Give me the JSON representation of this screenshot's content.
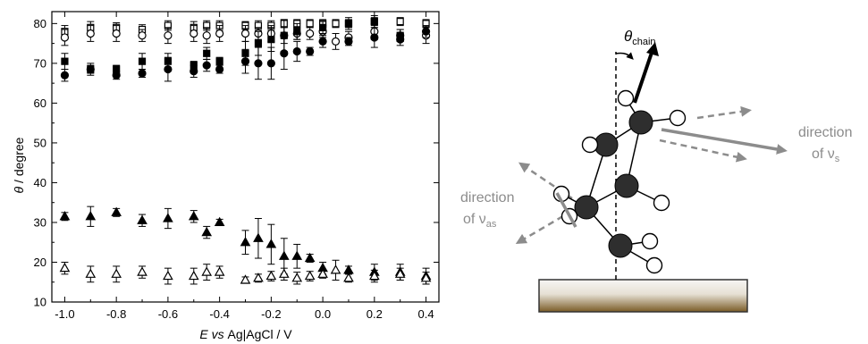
{
  "chart_data": {
    "type": "scatter",
    "xlabel": {
      "pre": "E",
      "mid": " vs ",
      "post": "Ag|AgCl / V"
    },
    "ylabel": {
      "sym": "θ",
      "post": " / degree"
    },
    "xlim": [
      -1.05,
      0.45
    ],
    "ylim": [
      10,
      83
    ],
    "xticks": [
      -1.0,
      -0.8,
      -0.6,
      -0.4,
      -0.2,
      0.0,
      0.2,
      0.4
    ],
    "xtick_labels": [
      "-1.0",
      "-0.8",
      "-0.6",
      "-0.4",
      "-0.2",
      "0.0",
      "0.2",
      "0.4"
    ],
    "yticks": [
      10,
      20,
      30,
      40,
      50,
      60,
      70,
      80
    ],
    "grid": false,
    "series": [
      {
        "marker": "square-open",
        "color": "#000000",
        "x": [
          -1.0,
          -0.9,
          -0.8,
          -0.7,
          -0.6,
          -0.5,
          -0.45,
          -0.4,
          -0.3,
          -0.25,
          -0.2,
          -0.15,
          -0.1,
          -0.05,
          0.0,
          0.05,
          0.1,
          0.2,
          0.3,
          0.4
        ],
        "y": [
          78,
          79,
          79,
          78.5,
          79.5,
          79,
          79.5,
          79.5,
          79.5,
          79.5,
          79.5,
          80,
          80,
          80,
          80,
          80,
          80,
          80.5,
          80.5,
          80
        ],
        "err": [
          1.5,
          1.5,
          1.2,
          1.2,
          1.2,
          1.5,
          1.2,
          1.2,
          1,
          1.2,
          1.2,
          1,
          1,
          1,
          1,
          1,
          1,
          1,
          1,
          1
        ]
      },
      {
        "marker": "circle-open",
        "color": "#000000",
        "x": [
          -1.0,
          -0.9,
          -0.8,
          -0.7,
          -0.6,
          -0.5,
          -0.45,
          -0.4,
          -0.3,
          -0.25,
          -0.2,
          -0.15,
          -0.1,
          -0.05,
          0.0,
          0.05,
          0.1,
          0.2,
          0.3,
          0.4
        ],
        "y": [
          76.5,
          77.5,
          77.5,
          77,
          77,
          77.5,
          77,
          77.5,
          77.5,
          77.5,
          77.5,
          77,
          77.5,
          77.5,
          78,
          75.5,
          76.5,
          78,
          77,
          77
        ],
        "err": [
          2,
          2,
          2,
          1.5,
          2,
          2,
          2,
          2,
          2,
          1.5,
          2,
          2,
          1.5,
          1.5,
          1.5,
          2,
          1.5,
          2,
          1.5,
          2
        ]
      },
      {
        "marker": "square-filled",
        "color": "#000000",
        "x": [
          -1.0,
          -0.9,
          -0.8,
          -0.7,
          -0.6,
          -0.5,
          -0.45,
          -0.4,
          -0.3,
          -0.25,
          -0.2,
          -0.15,
          -0.1,
          0.0,
          0.1,
          0.2,
          0.3
        ],
        "y": [
          70.5,
          68.5,
          68.5,
          70.5,
          70.5,
          69.5,
          72.5,
          70.5,
          72.5,
          75,
          76,
          77,
          78,
          79,
          80,
          80.5,
          77
        ],
        "err": [
          2,
          1,
          1,
          2,
          2,
          1,
          1.5,
          1,
          3,
          3,
          3,
          4,
          2,
          1.5,
          1.5,
          1.5,
          1.5
        ]
      },
      {
        "marker": "circle-filled",
        "color": "#000000",
        "x": [
          -1.0,
          -0.9,
          -0.8,
          -0.7,
          -0.6,
          -0.5,
          -0.45,
          -0.4,
          -0.3,
          -0.25,
          -0.2,
          -0.15,
          -0.1,
          -0.05,
          0.0,
          0.1,
          0.2,
          0.3,
          0.4
        ],
        "y": [
          67,
          68.5,
          67,
          67.5,
          68.5,
          68,
          69.5,
          68.5,
          70.5,
          70,
          70,
          72.5,
          73,
          73,
          75.5,
          75.5,
          76.5,
          76,
          78
        ],
        "err": [
          1.5,
          1.5,
          1,
          1,
          3,
          1.5,
          1.5,
          1,
          3,
          4,
          4,
          4,
          2.5,
          1,
          1.5,
          1,
          2.5,
          1.5,
          1.5
        ]
      },
      {
        "marker": "triangle-filled",
        "color": "#000000",
        "x": [
          -1.0,
          -0.9,
          -0.8,
          -0.7,
          -0.6,
          -0.5,
          -0.45,
          -0.4,
          -0.3,
          -0.25,
          -0.2,
          -0.15,
          -0.1,
          -0.05,
          0.0,
          0.1,
          0.2,
          0.3,
          0.4
        ],
        "y": [
          31.5,
          31.5,
          32.5,
          30.5,
          31,
          31.5,
          27.5,
          30,
          25,
          26,
          24.5,
          21.5,
          21.5,
          21,
          18.5,
          18,
          17.5,
          17.5,
          16.5
        ],
        "err": [
          1,
          2.5,
          1,
          1.5,
          2.5,
          1.5,
          1.5,
          0.8,
          3,
          5,
          5,
          4.5,
          3,
          1,
          1.5,
          1,
          2,
          2,
          2
        ]
      },
      {
        "marker": "triangle-open",
        "color": "#000000",
        "x": [
          -1.0,
          -0.9,
          -0.8,
          -0.7,
          -0.6,
          -0.5,
          -0.45,
          -0.4,
          -0.3,
          -0.25,
          -0.2,
          -0.15,
          -0.1,
          -0.05,
          0.0,
          0.05,
          0.1,
          0.2,
          0.3,
          0.4
        ],
        "y": [
          18.5,
          17,
          17,
          17.5,
          16.5,
          16.5,
          17.5,
          17.5,
          15.5,
          16,
          16.5,
          17,
          16,
          16.5,
          17,
          18,
          16,
          16.5,
          17,
          16
        ],
        "err": [
          1.5,
          2,
          2,
          1.5,
          2,
          2,
          2,
          1.5,
          0.8,
          1,
          1.2,
          1.5,
          1.5,
          1.2,
          1,
          2.5,
          1,
          1.5,
          1.5,
          1.5
        ]
      }
    ]
  },
  "diagram": {
    "theta": "θ",
    "theta_sub": "chain",
    "label_right_line1": "direction",
    "label_right_line2": "of ν",
    "label_right_sub": "s",
    "label_left_line1": "direction",
    "label_left_line2": "of ν",
    "label_left_sub": "as",
    "colors": {
      "carbon": "#2e2e2e",
      "hydrogen": "#ffffff",
      "arrow_gray": "#8c8c8c",
      "substrate_top": "#f7f6f4",
      "substrate_bottom": "#7a5b26"
    }
  }
}
